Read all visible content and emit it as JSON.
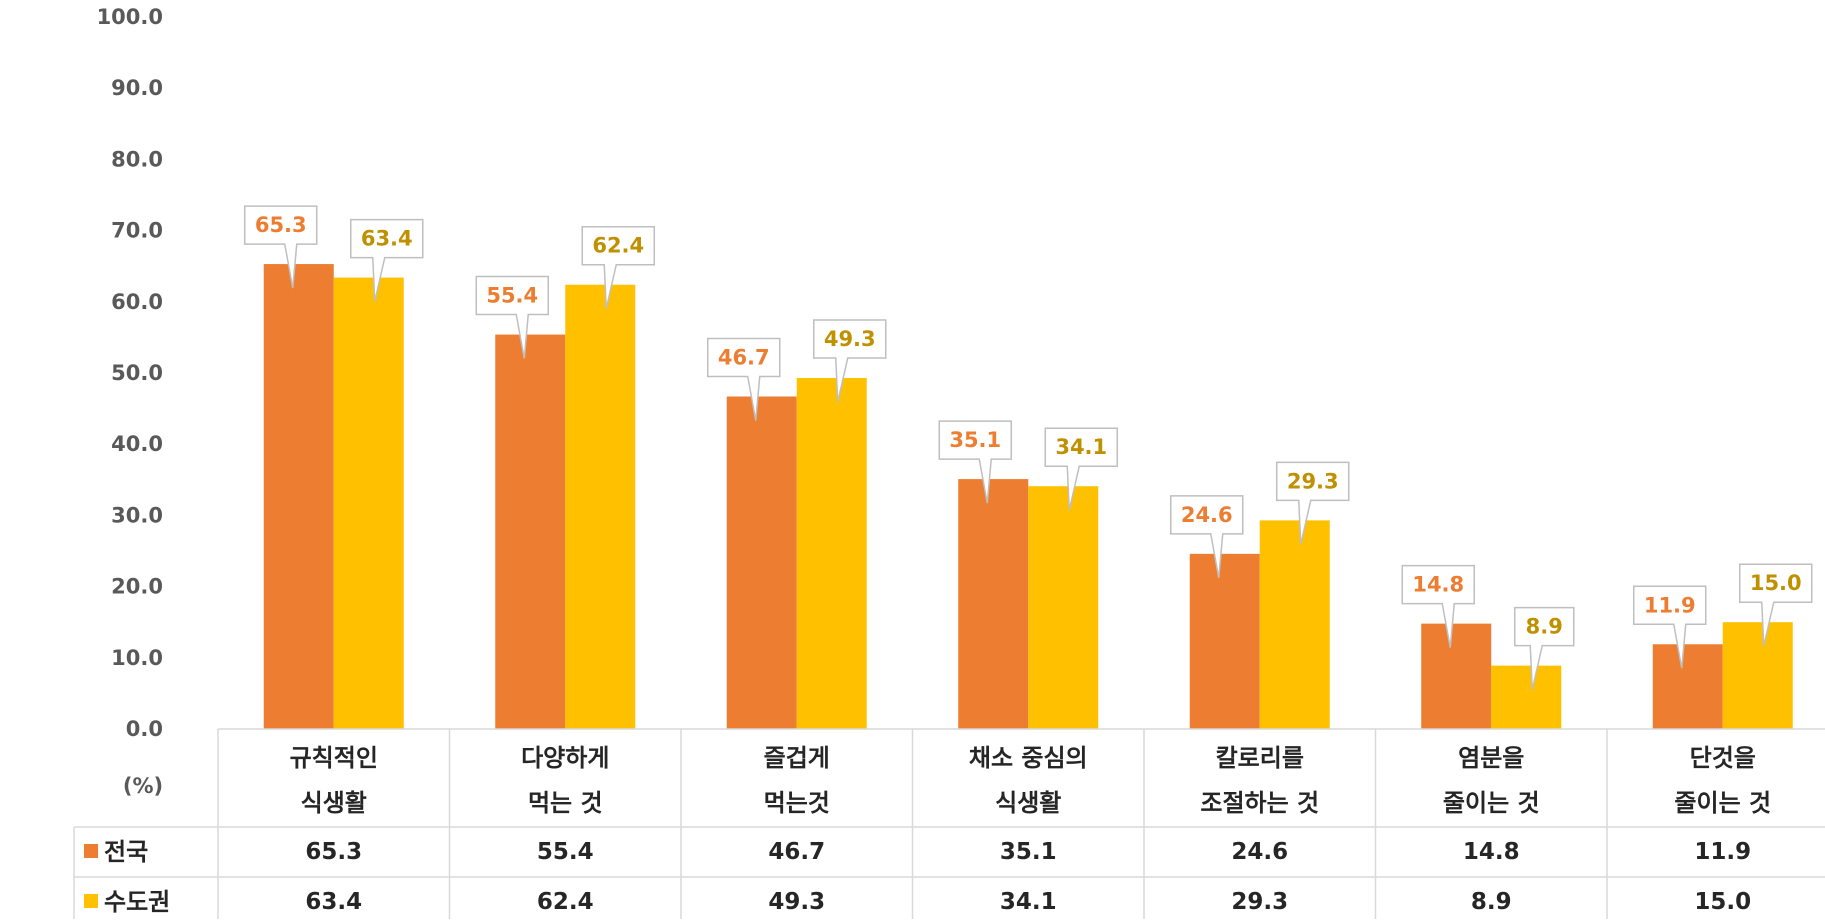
{
  "chart_data": {
    "type": "bar",
    "unit_label": "(%)",
    "ylim": [
      0,
      100
    ],
    "yticks": [
      "0.0",
      "10.0",
      "20.0",
      "30.0",
      "40.0",
      "50.0",
      "60.0",
      "70.0",
      "80.0",
      "90.0",
      "100.0"
    ],
    "categories": [
      [
        "규칙적인",
        "식생활"
      ],
      [
        "다양하게",
        "먹는 것"
      ],
      [
        "즐겁게",
        "먹는것"
      ],
      [
        "채소 중심의",
        "식생활"
      ],
      [
        "칼로리를",
        "조절하는 것"
      ],
      [
        "염분을",
        "줄이는 것"
      ],
      [
        "단것을",
        "줄이는 것"
      ]
    ],
    "series": [
      {
        "name": "전국",
        "color": "#ED7D31",
        "label_color": "#ED7D31",
        "values": [
          65.3,
          55.4,
          46.7,
          35.1,
          24.6,
          14.8,
          11.9
        ],
        "labels": [
          "65.3",
          "55.4",
          "46.7",
          "35.1",
          "24.6",
          "14.8",
          "11.9"
        ]
      },
      {
        "name": "수도권",
        "color": "#FFC000",
        "label_color": "#BF9000",
        "values": [
          63.4,
          62.4,
          49.3,
          34.1,
          29.3,
          8.9,
          15.0
        ],
        "labels": [
          "63.4",
          "62.4",
          "49.3",
          "34.1",
          "29.3",
          "8.9",
          "15.0"
        ]
      }
    ],
    "data_table": true,
    "grid": false,
    "legend": "data-table-left"
  }
}
